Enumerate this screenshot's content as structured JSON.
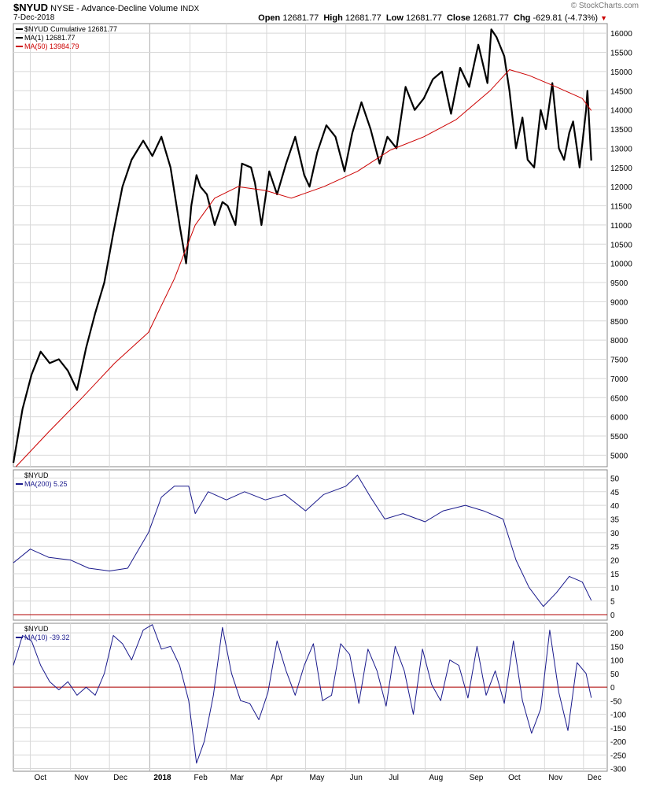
{
  "header": {
    "symbol": "$NYUD",
    "exchange_desc": "NYSE - Advance-Decline Volume",
    "instrument": "INDX",
    "date": "7-Dec-2018",
    "open_label": "Open",
    "open": "12681.77",
    "high_label": "High",
    "high": "12681.77",
    "low_label": "Low",
    "low": "12681.77",
    "close_label": "Close",
    "close": "12681.77",
    "chg_label": "Chg",
    "chg": "-629.81 (-4.73%)",
    "copyright": "© StockCharts.com"
  },
  "colors": {
    "price": "#000000",
    "ma50": "#cc0000",
    "indicator": "#1a1a8c",
    "zero_line": "#b00000",
    "grid": "#d8d8d8"
  },
  "chart_data": [
    {
      "type": "line",
      "panel": "main",
      "legend": [
        "$NYUD Cumulative 12681.77",
        "MA(1) 12681.77",
        "MA(50) 13984.79"
      ],
      "x_ticks": [
        "Oct",
        "Nov",
        "Dec",
        "2018",
        "Feb",
        "Mar",
        "Apr",
        "May",
        "Jun",
        "Jul",
        "Aug",
        "Sep",
        "Oct",
        "Nov",
        "Dec"
      ],
      "tick_dates": [
        "2017-10-01",
        "2017-11-01",
        "2017-12-01",
        "2018-01-01",
        "2018-02-01",
        "2018-03-01",
        "2018-04-01",
        "2018-05-01",
        "2018-06-01",
        "2018-07-01",
        "2018-08-01",
        "2018-09-01",
        "2018-10-01",
        "2018-11-01",
        "2018-12-01"
      ],
      "x_range": [
        "2017-09-18",
        "2018-12-12"
      ],
      "y_ticks": [
        5000,
        5500,
        6000,
        6500,
        7000,
        7500,
        8000,
        8500,
        9000,
        9500,
        10000,
        10500,
        11000,
        11500,
        12000,
        12500,
        13000,
        13500,
        14000,
        14500,
        15000,
        15500,
        16000
      ],
      "ylim": [
        4700,
        16250
      ],
      "series": [
        {
          "name": "$NYUD Cumulative",
          "x": [
            "2017-09-18",
            "2017-09-25",
            "2017-10-02",
            "2017-10-09",
            "2017-10-16",
            "2017-10-23",
            "2017-10-30",
            "2017-11-06",
            "2017-11-13",
            "2017-11-20",
            "2017-11-27",
            "2017-12-04",
            "2017-12-11",
            "2017-12-18",
            "2017-12-27",
            "2018-01-03",
            "2018-01-10",
            "2018-01-17",
            "2018-01-24",
            "2018-01-29",
            "2018-02-02",
            "2018-02-06",
            "2018-02-09",
            "2018-02-14",
            "2018-02-20",
            "2018-02-26",
            "2018-03-02",
            "2018-03-08",
            "2018-03-13",
            "2018-03-20",
            "2018-03-23",
            "2018-03-28",
            "2018-04-03",
            "2018-04-09",
            "2018-04-16",
            "2018-04-23",
            "2018-04-30",
            "2018-05-04",
            "2018-05-10",
            "2018-05-17",
            "2018-05-24",
            "2018-05-31",
            "2018-06-06",
            "2018-06-13",
            "2018-06-20",
            "2018-06-27",
            "2018-07-03",
            "2018-07-10",
            "2018-07-17",
            "2018-07-24",
            "2018-07-31",
            "2018-08-07",
            "2018-08-14",
            "2018-08-21",
            "2018-08-28",
            "2018-09-04",
            "2018-09-11",
            "2018-09-18",
            "2018-09-21",
            "2018-09-25",
            "2018-10-01",
            "2018-10-05",
            "2018-10-10",
            "2018-10-15",
            "2018-10-19",
            "2018-10-24",
            "2018-10-29",
            "2018-11-02",
            "2018-11-07",
            "2018-11-12",
            "2018-11-16",
            "2018-11-20",
            "2018-11-23",
            "2018-11-28",
            "2018-12-03",
            "2018-12-04",
            "2018-12-07"
          ],
          "values": [
            4800,
            6200,
            7100,
            7700,
            7400,
            7500,
            7200,
            6700,
            7800,
            8700,
            9500,
            10800,
            12000,
            12700,
            13200,
            12800,
            13300,
            12500,
            11000,
            10000,
            11500,
            12300,
            12000,
            11800,
            11000,
            11600,
            11500,
            11000,
            12600,
            12500,
            12100,
            11000,
            12400,
            11800,
            12600,
            13300,
            12300,
            12000,
            12900,
            13600,
            13300,
            12400,
            13400,
            14200,
            13500,
            12600,
            13300,
            13000,
            14600,
            14000,
            14300,
            14800,
            15000,
            13900,
            15100,
            14600,
            15700,
            14700,
            16100,
            15900,
            15400,
            14500,
            13000,
            13800,
            12700,
            12500,
            14000,
            13500,
            14700,
            13000,
            12700,
            13400,
            13700,
            12500,
            14000,
            14500,
            12681.77
          ]
        },
        {
          "name": "MA(50)",
          "x": [
            "2017-09-20",
            "2017-10-15",
            "2017-11-10",
            "2017-12-05",
            "2017-12-31",
            "2018-01-20",
            "2018-02-05",
            "2018-02-20",
            "2018-03-10",
            "2018-03-31",
            "2018-04-20",
            "2018-05-15",
            "2018-06-10",
            "2018-07-05",
            "2018-07-31",
            "2018-08-25",
            "2018-09-20",
            "2018-10-05",
            "2018-10-20",
            "2018-11-10",
            "2018-11-30",
            "2018-12-07"
          ],
          "values": [
            4700,
            5600,
            6500,
            7400,
            8200,
            9600,
            11000,
            11700,
            12000,
            11900,
            11700,
            12000,
            12400,
            12950,
            13300,
            13750,
            14500,
            15050,
            14900,
            14600,
            14300,
            13984.79
          ]
        }
      ]
    },
    {
      "type": "line",
      "panel": "middle",
      "legend": [
        "$NYUD",
        "MA(200) 5.25"
      ],
      "y_ticks": [
        0,
        5,
        10,
        15,
        20,
        25,
        30,
        35,
        40,
        45,
        50
      ],
      "ylim": [
        -2,
        53
      ],
      "series": [
        {
          "name": "MA(200)",
          "x": [
            "2017-09-18",
            "2017-10-01",
            "2017-10-15",
            "2017-11-01",
            "2017-11-15",
            "2017-12-01",
            "2017-12-15",
            "2017-12-31",
            "2018-01-10",
            "2018-01-20",
            "2018-01-31",
            "2018-02-05",
            "2018-02-15",
            "2018-03-01",
            "2018-03-15",
            "2018-03-31",
            "2018-04-15",
            "2018-05-01",
            "2018-05-15",
            "2018-06-01",
            "2018-06-10",
            "2018-06-20",
            "2018-07-01",
            "2018-07-15",
            "2018-08-01",
            "2018-08-15",
            "2018-09-01",
            "2018-09-15",
            "2018-09-30",
            "2018-10-10",
            "2018-10-20",
            "2018-10-31",
            "2018-11-10",
            "2018-11-20",
            "2018-11-30",
            "2018-12-07"
          ],
          "values": [
            19,
            24,
            21,
            20,
            17,
            16,
            17,
            30,
            43,
            47,
            47,
            37,
            45,
            42,
            45,
            42,
            44,
            38,
            44,
            47,
            51,
            43,
            35,
            37,
            34,
            38,
            40,
            38,
            35,
            20,
            10,
            3,
            8,
            14,
            12,
            5.25
          ]
        }
      ]
    },
    {
      "type": "line",
      "panel": "bottom",
      "legend": [
        "$NYUD",
        "MA(10) -39.32"
      ],
      "y_ticks": [
        -300,
        -250,
        -200,
        -150,
        -100,
        -50,
        0,
        50,
        100,
        150,
        200
      ],
      "ylim": [
        -310,
        235
      ],
      "series": [
        {
          "name": "MA(10)",
          "x": [
            "2017-09-18",
            "2017-09-25",
            "2017-10-02",
            "2017-10-09",
            "2017-10-16",
            "2017-10-23",
            "2017-10-30",
            "2017-11-06",
            "2017-11-13",
            "2017-11-20",
            "2017-11-27",
            "2017-12-04",
            "2017-12-11",
            "2017-12-18",
            "2017-12-27",
            "2018-01-03",
            "2018-01-10",
            "2018-01-17",
            "2018-01-24",
            "2018-01-31",
            "2018-02-06",
            "2018-02-12",
            "2018-02-19",
            "2018-02-26",
            "2018-03-05",
            "2018-03-12",
            "2018-03-19",
            "2018-03-26",
            "2018-04-02",
            "2018-04-09",
            "2018-04-16",
            "2018-04-23",
            "2018-04-30",
            "2018-05-07",
            "2018-05-14",
            "2018-05-21",
            "2018-05-28",
            "2018-06-04",
            "2018-06-11",
            "2018-06-18",
            "2018-06-25",
            "2018-07-02",
            "2018-07-09",
            "2018-07-16",
            "2018-07-23",
            "2018-07-30",
            "2018-08-06",
            "2018-08-13",
            "2018-08-20",
            "2018-08-27",
            "2018-09-03",
            "2018-09-10",
            "2018-09-17",
            "2018-09-24",
            "2018-10-01",
            "2018-10-08",
            "2018-10-15",
            "2018-10-22",
            "2018-10-29",
            "2018-11-05",
            "2018-11-12",
            "2018-11-19",
            "2018-11-26",
            "2018-12-03",
            "2018-12-07"
          ],
          "values": [
            80,
            190,
            170,
            80,
            20,
            -10,
            20,
            -30,
            0,
            -30,
            50,
            190,
            160,
            100,
            210,
            230,
            140,
            150,
            80,
            -50,
            -280,
            -200,
            -30,
            220,
            50,
            -50,
            -60,
            -120,
            -20,
            170,
            60,
            -30,
            80,
            160,
            -50,
            -30,
            160,
            120,
            -60,
            140,
            60,
            -70,
            150,
            60,
            -100,
            140,
            10,
            -50,
            100,
            80,
            -40,
            150,
            -30,
            60,
            -60,
            170,
            -50,
            -170,
            -80,
            210,
            -20,
            -160,
            90,
            50,
            -39.32
          ]
        }
      ]
    }
  ]
}
